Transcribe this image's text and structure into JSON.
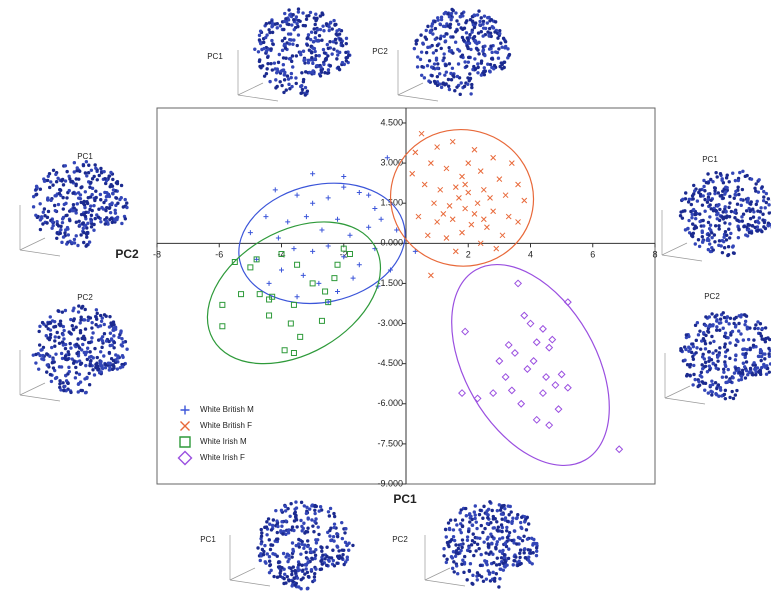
{
  "chart_data": {
    "type": "scatter",
    "xlabel": "PC1",
    "ylabel": "PC2",
    "xlim": [
      -8,
      8
    ],
    "ylim": [
      -9,
      5.06
    ],
    "xticks": [
      -8,
      -6,
      -4,
      -2,
      2,
      4,
      6,
      8
    ],
    "yticks": [
      {
        "value": 4.5,
        "label": "4.500"
      },
      {
        "value": 3,
        "label": "3.000"
      },
      {
        "value": 1.5,
        "label": "1.500"
      },
      {
        "value": 0,
        "label": "0.000"
      },
      {
        "value": -1.5,
        "label": "-1.500"
      },
      {
        "value": -3,
        "label": "-3.000"
      },
      {
        "value": -4.5,
        "label": "-4.500"
      },
      {
        "value": -6,
        "label": "-6.000"
      },
      {
        "value": -7.5,
        "label": "-7.500"
      },
      {
        "value": -9,
        "label": "-9.000"
      }
    ],
    "grid": false,
    "legend": "lower left",
    "series": [
      {
        "name": "White British M",
        "color": "#3b55d9",
        "marker": "plus",
        "x": [
          -4.2,
          -3.5,
          -3,
          -2.5,
          -2,
          -1.5,
          -0.6,
          -1,
          -4.5,
          -3.8,
          -3.2,
          -2.7,
          -2.2,
          -1.8,
          -1.2,
          -0.8,
          -0.3,
          -5,
          -4.1,
          -3.6,
          -3,
          -2.5,
          -2,
          -1.5,
          -1,
          -0.5,
          -4.8,
          -4,
          -3.3,
          -2.8,
          -2.2,
          -1.7,
          -3.5,
          -2.5,
          -4.4,
          -1.2,
          -3,
          -2,
          0.3,
          -0.9
        ],
        "y": [
          2,
          1.8,
          1.5,
          1.7,
          2.1,
          1.9,
          3.2,
          1.3,
          1,
          0.8,
          1,
          0.5,
          0.9,
          0.3,
          0.6,
          0.9,
          0.5,
          0.4,
          0.2,
          -0.2,
          -0.3,
          -0.1,
          -0.5,
          -0.8,
          -0.2,
          -1,
          -0.6,
          -1,
          -1.2,
          -1.5,
          -1.8,
          -1.3,
          -2,
          -2.2,
          -1.5,
          1.8,
          2.6,
          2.5,
          -0.3,
          -1.6
        ],
        "ellipse": {
          "cx": -2.7,
          "cy": 0,
          "rx": 2.7,
          "ry": 2.2,
          "angle": -12
        }
      },
      {
        "name": "White British F",
        "color": "#e8693a",
        "marker": "cross",
        "x": [
          0.5,
          1,
          1.5,
          2.2,
          2.8,
          3.4,
          0.8,
          1.3,
          1.8,
          2.4,
          3,
          3.6,
          0.6,
          1.1,
          1.6,
          2,
          2.5,
          3.2,
          3.8,
          0.9,
          1.4,
          1.9,
          2.3,
          2.8,
          3.3,
          0.4,
          1,
          1.5,
          2.1,
          2.6,
          3.1,
          0.7,
          1.3,
          1.8,
          2.4,
          2.9,
          1.6,
          0.2,
          2,
          1.7,
          2.2,
          1.2,
          2.7,
          0.8,
          3.6,
          0.3,
          1.9,
          2.5
        ],
        "y": [
          4.1,
          3.6,
          3.8,
          3.5,
          3.2,
          3,
          3,
          2.8,
          2.5,
          2.7,
          2.4,
          2.2,
          2.2,
          2,
          2.1,
          1.9,
          2,
          1.8,
          1.6,
          1.5,
          1.4,
          1.3,
          1.5,
          1.2,
          1,
          1,
          0.8,
          0.9,
          0.7,
          0.6,
          0.3,
          0.3,
          0.2,
          0.4,
          0,
          -0.2,
          -0.3,
          2.6,
          3,
          1.7,
          1.1,
          1.1,
          1.7,
          -1.2,
          0.8,
          3.4,
          2.2,
          0.9
        ],
        "ellipse": {
          "cx": 1.8,
          "cy": 1.7,
          "rx": 2.3,
          "ry": 2.55,
          "angle": 10
        }
      },
      {
        "name": "White Irish M",
        "color": "#2e9a3a",
        "marker": "square",
        "x": [
          -5.5,
          -4.8,
          -5,
          -4,
          -3.5,
          -2.2,
          -2,
          -1.8,
          -5.9,
          -5.3,
          -4.7,
          -4.4,
          -4.3,
          -3.6,
          -3,
          -2.6,
          -2.5,
          -5.9,
          -4.4,
          -3.7,
          -2.7,
          -3.4,
          -3.9,
          -3.6,
          -2.3
        ],
        "y": [
          -0.7,
          -0.6,
          -0.9,
          -0.4,
          -0.8,
          -0.8,
          -0.2,
          -0.4,
          -2.3,
          -1.9,
          -1.9,
          -2.1,
          -2,
          -2.3,
          -1.5,
          -1.8,
          -2.2,
          -3.1,
          -2.7,
          -3,
          -2.9,
          -3.5,
          -4,
          -4.1,
          -1.3
        ],
        "ellipse": {
          "cx": -3.6,
          "cy": -1.85,
          "rx": 3.0,
          "ry": 2.3,
          "angle": -30
        }
      },
      {
        "name": "White Irish F",
        "color": "#9a4fe0",
        "marker": "diamond",
        "x": [
          3.6,
          5.2,
          1.9,
          3.8,
          4,
          4.4,
          4.7,
          3.3,
          4.2,
          4.6,
          3.5,
          4.1,
          3.9,
          3.2,
          4.5,
          5,
          4.8,
          5.2,
          1.8,
          2.8,
          3.4,
          4.4,
          3.7,
          4.9,
          2.3,
          4.2,
          4.6,
          6.85,
          3
        ],
        "y": [
          -1.5,
          -2.2,
          -3.3,
          -2.7,
          -3,
          -3.2,
          -3.6,
          -3.8,
          -3.7,
          -3.9,
          -4.1,
          -4.4,
          -4.7,
          -5,
          -5,
          -4.9,
          -5.3,
          -5.4,
          -5.6,
          -5.6,
          -5.5,
          -5.6,
          -6,
          -6.2,
          -5.8,
          -6.6,
          -6.8,
          -7.7,
          -4.4
        ],
        "ellipse": {
          "cx": 4.0,
          "cy": -4.55,
          "rx": 2.1,
          "ry": 4.1,
          "angle": -30
        }
      }
    ],
    "panels": [
      {
        "label": "PC1"
      },
      {
        "label": "PC2"
      },
      {
        "label": "PC1"
      },
      {
        "label": "PC2"
      },
      {
        "label": "PC1"
      },
      {
        "label": "PC2"
      },
      {
        "label": "PC1"
      },
      {
        "label": "PC2"
      }
    ]
  }
}
